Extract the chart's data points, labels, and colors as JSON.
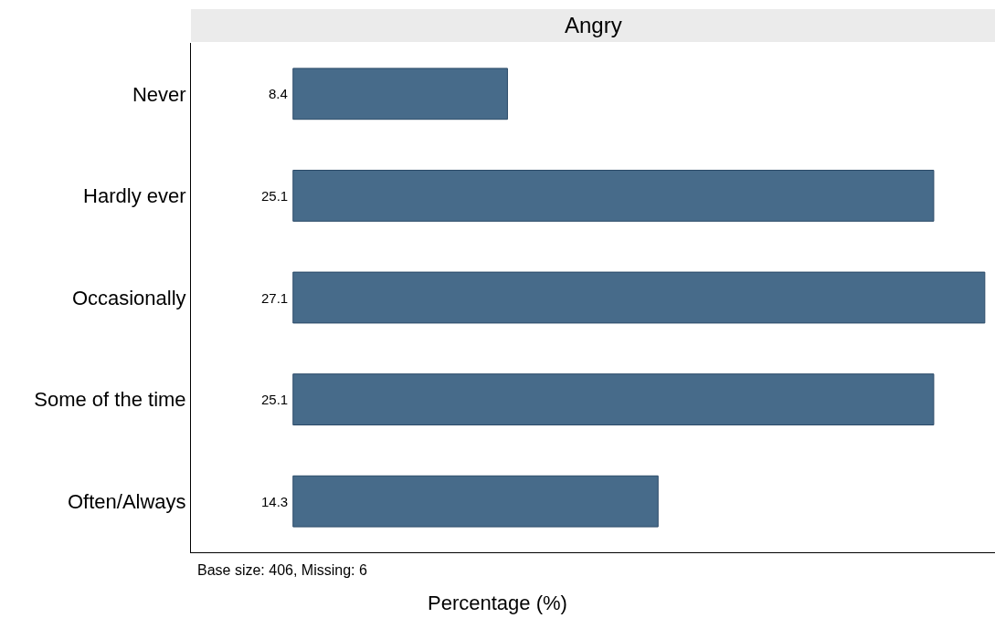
{
  "chart_data": {
    "type": "bar",
    "orientation": "horizontal",
    "title": "Angry",
    "xlabel": "Percentage (%)",
    "categories": [
      "Never",
      "Hardly ever",
      "Occasionally",
      "Some of the time",
      "Often/Always"
    ],
    "values": [
      8.4,
      25.1,
      27.1,
      25.1,
      14.3
    ],
    "color": "#476b8a",
    "data_labels": true,
    "xlim": [
      -4,
      27.5
    ],
    "tick_labels": "y",
    "annotations": [
      "Base size: 406, Missing: 6"
    ]
  }
}
